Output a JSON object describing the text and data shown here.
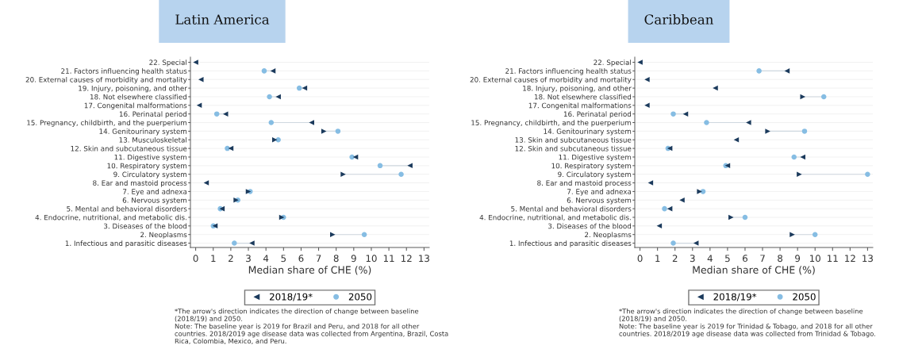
{
  "chart_data": [
    {
      "type": "scatter",
      "title": "Latin America",
      "orientation": "horizontal",
      "xlabel": "Median share of CHE (%)",
      "categories": [
        "22. Special",
        "21. Factors influencing health status",
        "20. External causes of morbidity and mortality",
        "19. Injury, poisoning, and other",
        "18. Not elsewhere classified",
        "17. Congenital malformations",
        "16. Perinatal period",
        "15. Pregnancy, childbirth, and the puerperium",
        "14. Genitourinary system",
        "13. Musculoskeletal",
        "12. Skin and subcutaneous tissue",
        "11. Digestive system",
        "10. Respiratory system",
        "9. Circulatory system",
        "8. Ear and mastoid process",
        "7. Eye and adnexa",
        "6. Nervous system",
        "5. Mental and behavioral disorders",
        "4. Endocrine, nutritional, and metabolic dis.",
        "3. Diseases of the blood",
        "2. Neoplasms",
        "1. Infectious and parasitic diseases"
      ],
      "series": [
        {
          "name": "2050",
          "color": "#86bde3",
          "marker": "circle",
          "values": [
            null,
            3.9,
            null,
            5.9,
            4.2,
            null,
            1.2,
            4.3,
            8.1,
            4.7,
            1.8,
            8.9,
            10.5,
            11.7,
            null,
            3.1,
            2.4,
            1.4,
            5.0,
            1.0,
            9.6,
            2.2
          ]
        },
        {
          "name": "2018/19*",
          "color": "#1b3a5c",
          "marker": "triangle",
          "values": [
            0.0,
            4.4,
            0.3,
            6.2,
            4.7,
            0.2,
            1.7,
            6.6,
            7.3,
            4.5,
            2.0,
            9.1,
            12.2,
            8.4,
            0.6,
            3.0,
            2.3,
            1.5,
            4.9,
            1.1,
            7.8,
            3.2
          ]
        }
      ],
      "xlim": [
        -0.3,
        13.3
      ],
      "xticks": [
        0,
        1,
        2,
        3,
        4,
        5,
        6,
        7,
        8,
        9,
        10,
        11,
        12,
        13
      ],
      "grid": "y",
      "legend": "bottom",
      "annotations": [
        "*The arrow's direction indicates the direction of change between baseline (2018/19) and 2050.",
        "Note: The baseline year is 2019 for Brazil and Peru, and 2018 for all other countries. 2018/2019 age disease data was collected from Argentina, Brazil, Costa Rica, Colombia, Mexico, and Peru."
      ]
    },
    {
      "type": "scatter",
      "title": "Caribbean",
      "orientation": "horizontal",
      "xlabel": "Median share of CHE (%)",
      "categories": [
        "22. Special",
        "21. Factors influencing health status",
        "20. External causes of morbidity and mortality",
        "18. Injury, poisoning, and other",
        "18. Not elsewhere classified",
        "17. Congenital malformations",
        "16. Perinatal period",
        "15. Pregnancy, childbirth, and the puerperium",
        "14. Genitourinary system",
        "13. Skin and subcutaneous tissue",
        "12. Skin and subcutaneous tissue",
        "11. Digestive system",
        "10. Respiratory system",
        "9. Circulatory system",
        "8. Ear and mastoid process",
        "7. Eye and adnexa",
        "6. Nervous system",
        "5. Mental and behavioral disorders",
        "4. Endocrine, nutritional, and metabolic dis.",
        "3. Diseases of the blood",
        "2. Neoplasms",
        "1. Infectious and parasitic diseases"
      ],
      "series": [
        {
          "name": "2050",
          "color": "#86bde3",
          "marker": "circle",
          "values": [
            null,
            6.8,
            null,
            null,
            10.5,
            null,
            1.9,
            3.8,
            9.4,
            null,
            1.6,
            8.8,
            4.9,
            13.0,
            null,
            3.6,
            null,
            1.4,
            6.0,
            null,
            10.0,
            1.9
          ]
        },
        {
          "name": "2018/19*",
          "color": "#1b3a5c",
          "marker": "triangle",
          "values": [
            0.0,
            8.4,
            0.4,
            4.3,
            9.3,
            0.4,
            2.6,
            6.2,
            7.3,
            5.5,
            1.7,
            9.3,
            5.0,
            9.1,
            0.6,
            3.4,
            2.4,
            1.7,
            5.2,
            1.1,
            8.7,
            3.2
          ]
        }
      ],
      "xlim": [
        -0.3,
        13.3
      ],
      "xticks": [
        0,
        1,
        2,
        3,
        4,
        5,
        6,
        7,
        8,
        9,
        10,
        11,
        12,
        13
      ],
      "grid": "y",
      "legend": "bottom",
      "annotations": [
        "*The arrow's direction indicates the direction of change between baseline (2018/19) and 2050.",
        "Note: The baseline year is 2019 for Trinidad & Tobago, and 2018 for all other countries. 2018/2019 age disease data was collected from Trinidad & Tobago."
      ]
    }
  ]
}
